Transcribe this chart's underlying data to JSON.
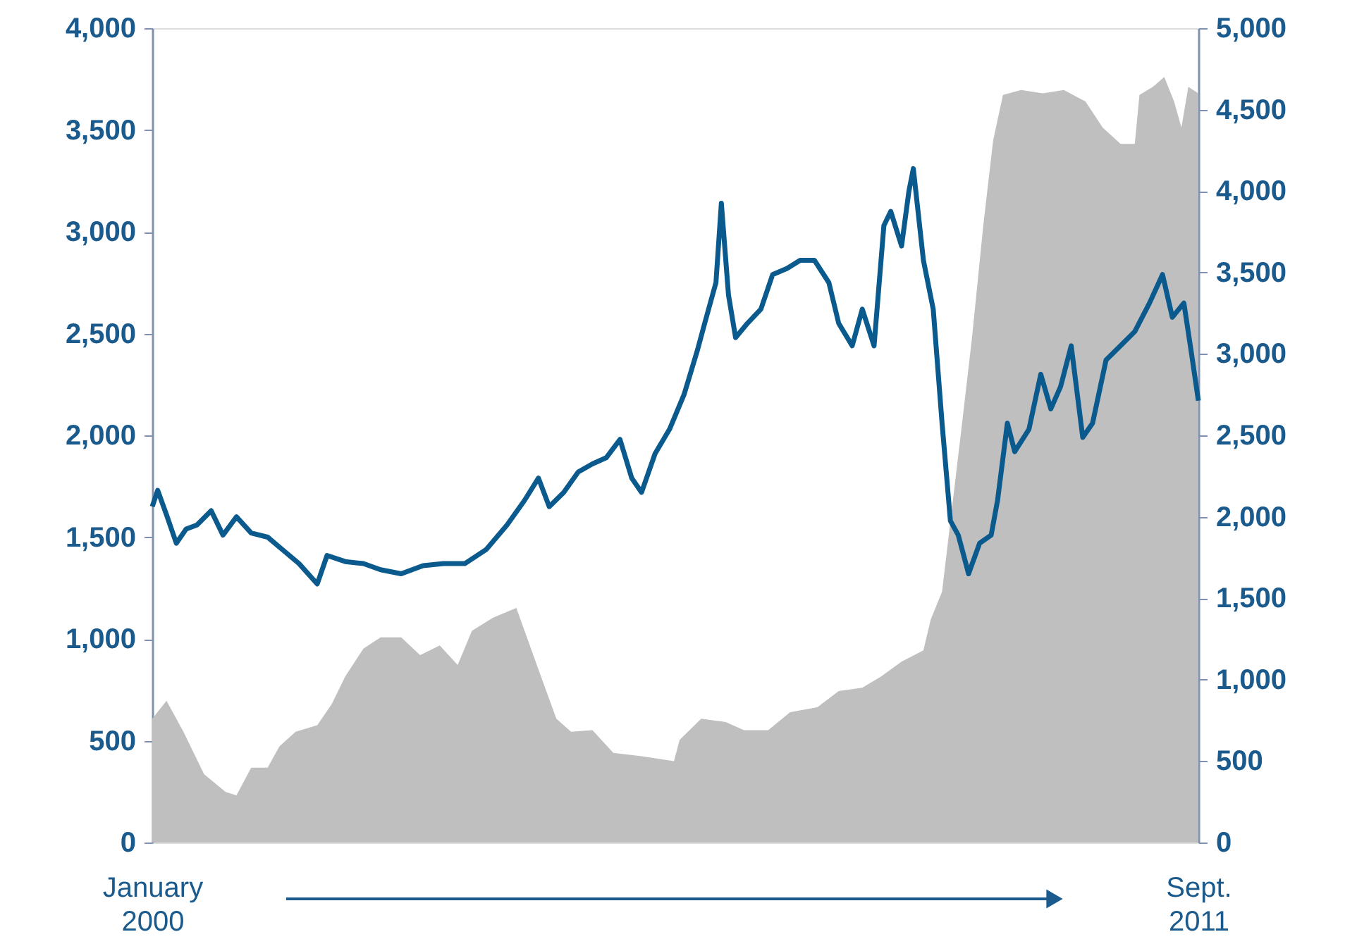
{
  "chart_data": {
    "type": "line",
    "xlim": [
      "2000-01-01",
      "2011-09-01"
    ],
    "xticks": [
      {
        "value": "2000-01-01",
        "label": "January\n2000"
      },
      {
        "value": "2011-09-01",
        "label": "Sept.\n2011"
      }
    ],
    "ylim": [
      0,
      4000
    ],
    "yticks": [
      0,
      500,
      {
        "value": 1000,
        "label": "1,000"
      },
      {
        "value": 1500,
        "label": "1,500"
      },
      {
        "value": 2000,
        "label": "2,000"
      },
      {
        "value": 2500,
        "label": "2,500"
      },
      {
        "value": 3000,
        "label": "3,000"
      },
      {
        "value": 3500,
        "label": "3,500"
      },
      {
        "value": 4000,
        "label": "4,000"
      }
    ],
    "y2lim": [
      0,
      5000
    ],
    "y2ticks": [
      0,
      500,
      {
        "value": 1000,
        "label": "1,000"
      },
      {
        "value": 1500,
        "label": "1,500"
      },
      {
        "value": 2000,
        "label": "2,000"
      },
      {
        "value": 2500,
        "label": "2,500"
      },
      {
        "value": 3000,
        "label": "3,000"
      },
      {
        "value": 3500,
        "label": "3,500"
      },
      {
        "value": 4000,
        "label": "4,000"
      },
      {
        "value": 4500,
        "label": "4,500"
      },
      {
        "value": 5000,
        "label": "5,000"
      }
    ],
    "grid": false,
    "marker": "none",
    "line_style": "solid",
    "series": [
      {
        "type": "area",
        "axis": "y2",
        "color": "#bfbfbf",
        "x": [
          "2000-01-01",
          "2000-02-28",
          "2000-05-07",
          "2000-07-30",
          "2000-10-26",
          "2000-12-09",
          "2001-02-07",
          "2001-04-15",
          "2001-06-02",
          "2001-08-07",
          "2001-11-03",
          "2002-01-01",
          "2002-02-25",
          "2002-05-10",
          "2002-07-19",
          "2002-10-11",
          "2002-12-27",
          "2003-03-17",
          "2003-05-29",
          "2003-07-26",
          "2003-10-19",
          "2004-01-23",
          "2004-04-01",
          "2004-07-04",
          "2004-09-02",
          "2004-11-28",
          "2005-02-21",
          "2005-06-16",
          "2005-10-26",
          "2005-11-18",
          "2006-02-14",
          "2006-05-25",
          "2006-08-07",
          "2006-11-14",
          "2007-02-11",
          "2007-06-02",
          "2007-08-28",
          "2007-12-02",
          "2008-02-17",
          "2008-05-10",
          "2008-08-07",
          "2008-09-06",
          "2008-10-22",
          "2008-12-02",
          "2009-01-12",
          "2009-02-21",
          "2009-04-08",
          "2009-05-18",
          "2009-06-27",
          "2009-09-09",
          "2009-12-06",
          "2010-03-02",
          "2010-05-29",
          "2010-08-07",
          "2010-10-19",
          "2010-12-16",
          "2011-01-04",
          "2011-02-28",
          "2011-04-15",
          "2011-05-25",
          "2011-06-24",
          "2011-07-22",
          "2011-09-01"
        ],
        "values": [
          760,
          870,
          680,
          420,
          310,
          290,
          460,
          460,
          590,
          680,
          720,
          850,
          1020,
          1190,
          1260,
          1260,
          1150,
          1210,
          1090,
          1300,
          1380,
          1440,
          1150,
          760,
          680,
          690,
          550,
          530,
          500,
          630,
          760,
          740,
          690,
          690,
          800,
          830,
          930,
          950,
          1020,
          1110,
          1180,
          1370,
          1540,
          2060,
          2580,
          3100,
          3790,
          4310,
          4590,
          4620,
          4600,
          4620,
          4550,
          4390,
          4290,
          4290,
          4590,
          4640,
          4700,
          4550,
          4390,
          4640,
          4600
        ]
      },
      {
        "axis": "y",
        "color": "#0b5a8e",
        "x": [
          "2000-01-01",
          "2000-01-23",
          "2000-02-28",
          "2000-04-08",
          "2000-05-18",
          "2000-07-01",
          "2000-08-28",
          "2000-10-15",
          "2000-12-09",
          "2001-02-07",
          "2001-04-15",
          "2001-06-13",
          "2001-08-21",
          "2001-11-03",
          "2001-12-13",
          "2002-02-25",
          "2002-05-10",
          "2002-07-19",
          "2002-10-11",
          "2003-01-08",
          "2003-04-01",
          "2003-06-27",
          "2003-09-23",
          "2003-12-16",
          "2004-02-25",
          "2004-04-22",
          "2004-06-05",
          "2004-08-03",
          "2004-10-01",
          "2004-11-28",
          "2005-01-23",
          "2005-03-20",
          "2005-05-07",
          "2005-06-16",
          "2005-08-10",
          "2005-10-08",
          "2005-12-06",
          "2006-01-30",
          "2006-02-28",
          "2006-04-15",
          "2006-05-07",
          "2006-06-05",
          "2006-07-04",
          "2006-08-21",
          "2006-10-15",
          "2006-12-02",
          "2007-01-30",
          "2007-03-24",
          "2007-05-21",
          "2007-07-19",
          "2007-08-28",
          "2007-10-22",
          "2007-12-02",
          "2008-01-19",
          "2008-02-28",
          "2008-03-27",
          "2008-05-10",
          "2008-06-09",
          "2008-06-27",
          "2008-08-07",
          "2008-09-16",
          "2008-10-22",
          "2008-11-25",
          "2008-12-27",
          "2009-02-07",
          "2009-03-24",
          "2009-05-10",
          "2009-06-05",
          "2009-07-15",
          "2009-08-14",
          "2009-10-11",
          "2009-11-28",
          "2010-01-08",
          "2010-02-17",
          "2010-04-01",
          "2010-05-18",
          "2010-06-27",
          "2010-08-21",
          "2010-10-19",
          "2010-12-16",
          "2011-02-14",
          "2011-04-08",
          "2011-05-18",
          "2011-07-04",
          "2011-08-03",
          "2011-09-01"
        ],
        "values": [
          1650,
          1730,
          1610,
          1470,
          1540,
          1560,
          1630,
          1510,
          1600,
          1520,
          1500,
          1440,
          1370,
          1270,
          1410,
          1380,
          1370,
          1340,
          1320,
          1360,
          1370,
          1370,
          1440,
          1560,
          1680,
          1790,
          1650,
          1720,
          1820,
          1860,
          1890,
          1980,
          1790,
          1720,
          1910,
          2030,
          2200,
          2420,
          2550,
          2750,
          3140,
          2690,
          2480,
          2550,
          2620,
          2790,
          2820,
          2860,
          2860,
          2750,
          2550,
          2440,
          2620,
          2440,
          3030,
          3100,
          2930,
          3200,
          3310,
          2860,
          2620,
          2060,
          1580,
          1510,
          1320,
          1470,
          1510,
          1680,
          2060,
          1920,
          2030,
          2300,
          2130,
          2240,
          2440,
          1990,
          2060,
          2370,
          2440,
          2510,
          2650,
          2790,
          2580,
          2650,
          2410,
          2170
        ]
      }
    ]
  }
}
